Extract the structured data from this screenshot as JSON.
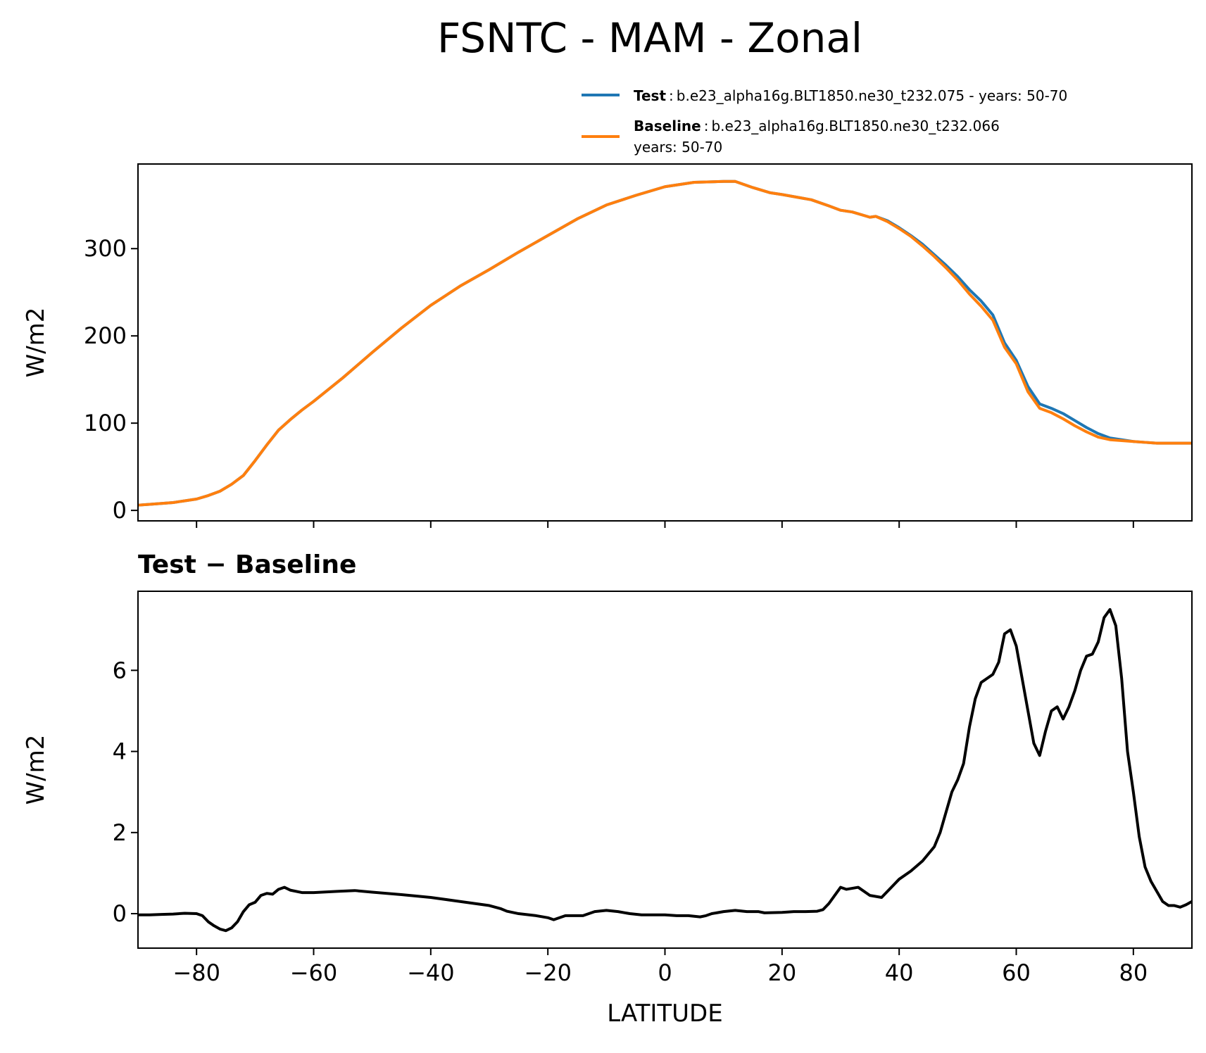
{
  "figure": {
    "title": "FSNTC - MAM - Zonal"
  },
  "legend": {
    "test_name": "Test",
    "test_desc": "b.e23_alpha16g.BLT1850.ne30_t232.075 - years: 50-70",
    "baseline_name": "Baseline",
    "baseline_desc": "b.e23_alpha16g.BLT1850.ne30_t232.066",
    "baseline_desc_2": "years: 50-70",
    "separator": ":"
  },
  "colors": {
    "test": "#1f77b4",
    "baseline": "#ff7f0e",
    "diff": "#000000"
  },
  "chart_data": [
    {
      "type": "line",
      "title": "",
      "xlabel": "",
      "ylabel": "W/m2",
      "xlim": [
        -90,
        90
      ],
      "ylim": [
        -12,
        397
      ],
      "yticks": [
        "0",
        "100",
        "200",
        "300"
      ],
      "ytick_values": [
        0,
        100,
        200,
        300
      ],
      "xticks": [
        -80,
        -60,
        -40,
        -20,
        0,
        20,
        40,
        60,
        80
      ],
      "x": [
        -90,
        -88,
        -86,
        -84,
        -82,
        -80,
        -78,
        -76,
        -74,
        -72,
        -70,
        -68,
        -66,
        -64,
        -62,
        -60,
        -55,
        -50,
        -45,
        -40,
        -35,
        -30,
        -25,
        -20,
        -15,
        -10,
        -5,
        0,
        5,
        10,
        12,
        15,
        18,
        20,
        25,
        28,
        30,
        32,
        34,
        35,
        36,
        38,
        40,
        42,
        44,
        46,
        48,
        50,
        52,
        54,
        56,
        58,
        60,
        62,
        64,
        66,
        68,
        70,
        72,
        74,
        76,
        78,
        80,
        82,
        84,
        86,
        88,
        90
      ],
      "series": [
        {
          "name": "Test",
          "values": [
            6,
            7,
            8,
            9,
            11,
            13,
            17,
            22,
            30,
            40,
            57,
            75,
            92,
            104,
            115,
            125,
            152,
            181,
            209,
            235,
            257,
            276,
            296,
            315,
            334,
            350,
            361,
            371,
            376,
            377,
            377,
            370,
            364,
            362,
            356,
            349,
            344,
            342,
            338,
            336,
            337,
            332,
            324,
            315,
            305,
            293,
            281,
            268,
            253,
            240,
            224,
            192,
            172,
            142,
            122,
            117,
            111,
            103,
            95,
            88,
            83,
            81,
            79,
            78,
            77,
            77,
            77,
            77
          ],
          "color_key": "test"
        },
        {
          "name": "Baseline",
          "values": [
            6,
            7,
            8,
            9,
            11,
            13,
            17,
            22,
            30,
            40,
            57,
            75,
            92,
            104,
            115,
            125,
            152,
            181,
            209,
            235,
            257,
            276,
            296,
            315,
            334,
            350,
            361,
            371,
            376,
            377,
            377,
            370,
            364,
            362,
            356,
            349,
            344,
            342,
            338,
            336,
            337,
            331,
            323,
            314,
            303,
            291,
            278,
            264,
            248,
            234,
            218,
            187,
            168,
            136,
            117,
            112,
            105,
            97,
            90,
            84,
            81,
            80,
            79,
            78,
            77,
            77,
            77,
            77
          ],
          "color_key": "baseline"
        }
      ]
    },
    {
      "type": "line",
      "title": "Test − Baseline",
      "xlabel": "LATITUDE",
      "ylabel": "W/m2",
      "xlim": [
        -90,
        90
      ],
      "ylim": [
        -0.85,
        7.95
      ],
      "yticks": [
        "0",
        "2",
        "4",
        "6"
      ],
      "ytick_values": [
        0,
        2,
        4,
        6
      ],
      "xticks": [
        -80,
        -60,
        -40,
        -20,
        0,
        20,
        40,
        60,
        80
      ],
      "xtick_labels": [
        "−80",
        "−60",
        "−40",
        "−20",
        "0",
        "20",
        "40",
        "60",
        "80"
      ],
      "x": [
        -90,
        -88,
        -86,
        -84,
        -82,
        -80,
        -79,
        -78,
        -77,
        -76,
        -75,
        -74,
        -73,
        -72,
        -71,
        -70,
        -69,
        -68,
        -67,
        -66,
        -65,
        -64,
        -62,
        -60,
        -56,
        -53,
        -50,
        -45,
        -40,
        -35,
        -30,
        -28,
        -27,
        -25,
        -22,
        -20,
        -19,
        -17,
        -16,
        -14,
        -12,
        -10,
        -8,
        -6,
        -4,
        -2,
        0,
        2,
        4,
        6,
        7,
        8,
        10,
        12,
        14,
        16,
        17,
        20,
        22,
        24,
        26,
        27,
        28,
        29,
        30,
        31,
        33,
        35,
        37,
        38,
        40,
        42,
        44,
        46,
        47,
        48,
        49,
        50,
        51,
        52,
        53,
        54,
        55,
        56,
        57,
        58,
        59,
        60,
        61,
        62,
        63,
        64,
        65,
        66,
        67,
        68,
        69,
        70,
        71,
        72,
        73,
        74,
        75,
        76,
        77,
        78,
        79,
        80,
        81,
        82,
        83,
        84,
        85,
        86,
        87,
        88,
        89,
        90
      ],
      "series": [
        {
          "name": "Test − Baseline",
          "values": [
            -0.03,
            -0.03,
            -0.02,
            -0.01,
            0.01,
            0.0,
            -0.05,
            -0.2,
            -0.3,
            -0.38,
            -0.42,
            -0.35,
            -0.2,
            0.05,
            0.22,
            0.28,
            0.45,
            0.5,
            0.48,
            0.6,
            0.65,
            0.58,
            0.52,
            0.52,
            0.55,
            0.57,
            0.53,
            0.47,
            0.4,
            0.3,
            0.2,
            0.12,
            0.06,
            0.0,
            -0.05,
            -0.1,
            -0.15,
            -0.05,
            -0.05,
            -0.05,
            0.05,
            0.08,
            0.05,
            0.0,
            -0.03,
            -0.03,
            -0.03,
            -0.05,
            -0.05,
            -0.08,
            -0.05,
            0.0,
            0.05,
            0.08,
            0.05,
            0.05,
            0.02,
            0.03,
            0.05,
            0.05,
            0.06,
            0.1,
            0.25,
            0.45,
            0.65,
            0.6,
            0.65,
            0.45,
            0.4,
            0.55,
            0.85,
            1.05,
            1.3,
            1.65,
            2.0,
            2.5,
            3.0,
            3.3,
            3.7,
            4.6,
            5.3,
            5.7,
            5.8,
            5.9,
            6.2,
            6.9,
            7.0,
            6.6,
            5.8,
            5.0,
            4.2,
            3.9,
            4.5,
            5.0,
            5.1,
            4.8,
            5.1,
            5.5,
            6.0,
            6.35,
            6.4,
            6.7,
            7.3,
            7.5,
            7.1,
            5.8,
            4.0,
            3.0,
            1.9,
            1.15,
            0.8,
            0.55,
            0.3,
            0.2,
            0.2,
            0.16,
            0.22,
            0.3
          ]
        }
      ]
    }
  ]
}
